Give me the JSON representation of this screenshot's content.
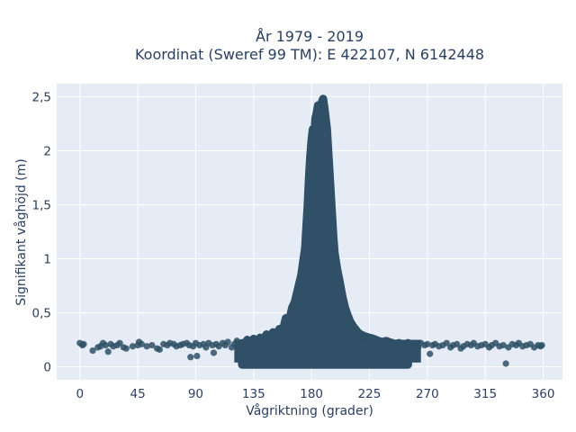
{
  "chart_data": {
    "type": "scatter",
    "title_line1": "År 1979 - 2019",
    "title_line2": "Koordinat (Sweref 99 TM): E 422107, N 6142448",
    "xlabel": "Vågriktning (grader)",
    "ylabel": "Signifikant våghöjd (m)",
    "xlim": [
      -18,
      375
    ],
    "ylim": [
      -0.12,
      2.62
    ],
    "x_ticks": [
      0,
      45,
      90,
      135,
      180,
      225,
      270,
      315,
      360
    ],
    "x_tick_labels": [
      "0",
      "45",
      "90",
      "135",
      "180",
      "225",
      "270",
      "315",
      "360"
    ],
    "y_ticks": [
      0,
      0.5,
      1,
      1.5,
      2,
      2.5
    ],
    "y_tick_labels": [
      "0",
      "0,5",
      "1",
      "1,5",
      "2",
      "2,5"
    ],
    "grid": true,
    "colors": {
      "marker": "#2f5066",
      "plot_bg": "#e5ecf6",
      "grid": "#ffffff",
      "text": "#2a3f5f"
    },
    "points": [
      [
        0,
        0.22
      ],
      [
        2,
        0.2
      ],
      [
        3,
        0.21
      ],
      [
        10,
        0.15
      ],
      [
        14,
        0.18
      ],
      [
        16,
        0.19
      ],
      [
        18,
        0.22
      ],
      [
        20,
        0.2
      ],
      [
        22,
        0.14
      ],
      [
        24,
        0.21
      ],
      [
        26,
        0.19
      ],
      [
        29,
        0.2
      ],
      [
        31,
        0.22
      ],
      [
        34,
        0.18
      ],
      [
        36,
        0.17
      ],
      [
        41,
        0.19
      ],
      [
        45,
        0.2
      ],
      [
        46,
        0.23
      ],
      [
        48,
        0.21
      ],
      [
        52,
        0.19
      ],
      [
        56,
        0.2
      ],
      [
        60,
        0.17
      ],
      [
        62,
        0.16
      ],
      [
        65,
        0.21
      ],
      [
        68,
        0.2
      ],
      [
        70,
        0.22
      ],
      [
        73,
        0.21
      ],
      [
        75,
        0.19
      ],
      [
        78,
        0.2
      ],
      [
        80,
        0.21
      ],
      [
        83,
        0.22
      ],
      [
        85,
        0.2
      ],
      [
        86,
        0.09
      ],
      [
        88,
        0.19
      ],
      [
        90,
        0.22
      ],
      [
        91,
        0.1
      ],
      [
        93,
        0.2
      ],
      [
        96,
        0.21
      ],
      [
        98,
        0.18
      ],
      [
        100,
        0.22
      ],
      [
        103,
        0.2
      ],
      [
        104,
        0.13
      ],
      [
        106,
        0.21
      ],
      [
        108,
        0.19
      ],
      [
        111,
        0.22
      ],
      [
        113,
        0.2
      ],
      [
        115,
        0.23
      ],
      [
        118,
        0.18
      ],
      [
        120,
        0.21
      ],
      [
        122,
        0.24
      ],
      [
        124,
        0.2
      ],
      [
        126,
        0.22
      ],
      [
        128,
        0.19
      ],
      [
        130,
        0.25
      ],
      [
        131,
        0.11
      ],
      [
        133,
        0.22
      ],
      [
        134,
        0.05
      ],
      [
        135,
        0.26
      ],
      [
        137,
        0.2
      ],
      [
        138,
        0.08
      ],
      [
        140,
        0.27
      ],
      [
        142,
        0.23
      ],
      [
        143,
        0.05
      ],
      [
        145,
        0.3
      ],
      [
        147,
        0.25
      ],
      [
        148,
        0.06
      ],
      [
        150,
        0.32
      ],
      [
        152,
        0.28
      ],
      [
        153,
        0.05
      ],
      [
        155,
        0.35
      ],
      [
        157,
        0.3
      ],
      [
        158,
        0.06
      ],
      [
        160,
        0.45
      ],
      [
        162,
        0.4
      ],
      [
        163,
        0.05
      ],
      [
        165,
        0.55
      ],
      [
        167,
        0.6
      ],
      [
        168,
        0.07
      ],
      [
        170,
        0.75
      ],
      [
        172,
        0.85
      ],
      [
        173,
        0.05
      ],
      [
        175,
        1.1
      ],
      [
        176,
        1.3
      ],
      [
        177,
        1.5
      ],
      [
        178,
        1.75
      ],
      [
        179,
        1.95
      ],
      [
        180,
        2.1
      ],
      [
        181,
        2.2
      ],
      [
        182,
        2.1
      ],
      [
        183,
        2.3
      ],
      [
        184,
        2.35
      ],
      [
        185,
        2.42
      ],
      [
        186,
        2.3
      ],
      [
        187,
        2.38
      ],
      [
        188,
        2.45
      ],
      [
        189,
        2.48
      ],
      [
        190,
        2.4
      ],
      [
        191,
        2.3
      ],
      [
        192,
        2.2
      ],
      [
        193,
        2.0
      ],
      [
        194,
        1.8
      ],
      [
        195,
        1.6
      ],
      [
        196,
        1.4
      ],
      [
        197,
        1.2
      ],
      [
        198,
        1.05
      ],
      [
        200,
        0.9
      ],
      [
        202,
        0.78
      ],
      [
        204,
        0.65
      ],
      [
        206,
        0.55
      ],
      [
        208,
        0.48
      ],
      [
        210,
        0.42
      ],
      [
        212,
        0.38
      ],
      [
        214,
        0.35
      ],
      [
        216,
        0.32
      ],
      [
        218,
        0.3
      ],
      [
        220,
        0.29
      ],
      [
        222,
        0.28
      ],
      [
        225,
        0.27
      ],
      [
        228,
        0.26
      ],
      [
        230,
        0.25
      ],
      [
        232,
        0.24
      ],
      [
        235,
        0.23
      ],
      [
        238,
        0.24
      ],
      [
        240,
        0.23
      ],
      [
        243,
        0.22
      ],
      [
        245,
        0.21
      ],
      [
        248,
        0.22
      ],
      [
        250,
        0.2
      ],
      [
        253,
        0.21
      ],
      [
        255,
        0.22
      ],
      [
        258,
        0.2
      ],
      [
        260,
        0.21
      ],
      [
        263,
        0.18
      ],
      [
        265,
        0.22
      ],
      [
        268,
        0.2
      ],
      [
        270,
        0.21
      ],
      [
        272,
        0.12
      ],
      [
        274,
        0.2
      ],
      [
        276,
        0.21
      ],
      [
        279,
        0.19
      ],
      [
        282,
        0.2
      ],
      [
        285,
        0.22
      ],
      [
        288,
        0.18
      ],
      [
        290,
        0.2
      ],
      [
        293,
        0.21
      ],
      [
        296,
        0.17
      ],
      [
        298,
        0.19
      ],
      [
        301,
        0.21
      ],
      [
        304,
        0.2
      ],
      [
        306,
        0.22
      ],
      [
        309,
        0.19
      ],
      [
        312,
        0.2
      ],
      [
        315,
        0.21
      ],
      [
        318,
        0.18
      ],
      [
        320,
        0.2
      ],
      [
        323,
        0.22
      ],
      [
        326,
        0.19
      ],
      [
        329,
        0.2
      ],
      [
        331,
        0.03
      ],
      [
        333,
        0.18
      ],
      [
        336,
        0.21
      ],
      [
        339,
        0.2
      ],
      [
        341,
        0.22
      ],
      [
        344,
        0.19
      ],
      [
        347,
        0.2
      ],
      [
        350,
        0.21
      ],
      [
        353,
        0.18
      ],
      [
        356,
        0.2
      ],
      [
        358,
        0.19
      ],
      [
        359,
        0.2
      ]
    ]
  }
}
